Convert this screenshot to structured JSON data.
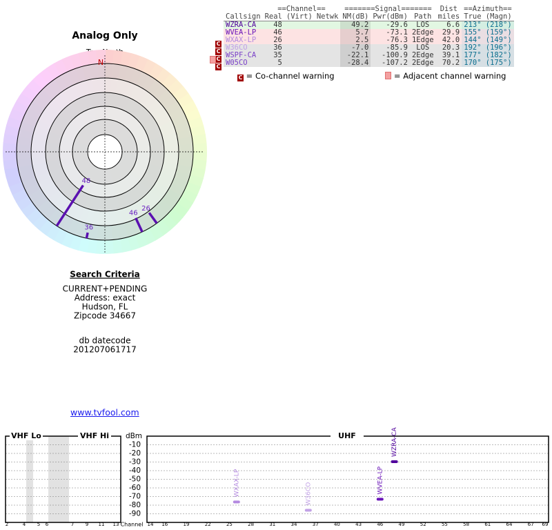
{
  "radar": {
    "title": "Analog Only",
    "north_caption": "TrueNorth",
    "north_letter": "N"
  },
  "table": {
    "group_headers": {
      "channel": "==Channel==",
      "signal": "=======Signal=======",
      "dist": "Dist",
      "azimuth": "==Azimuth=="
    },
    "columns": {
      "callsign": "Callsign",
      "real": "Real",
      "virt": "(Virt)",
      "netwk": "Netwk",
      "nm": "NM(dB)",
      "pwr": "Pwr(dBm)",
      "path": "Path",
      "dist": "miles",
      "az_true": "True",
      "az_magn": "(Magn)"
    },
    "rows": [
      {
        "callsign": "WZRA-CA",
        "real": 48,
        "nm": 49.2,
        "pwr": -29.6,
        "path": "LOS",
        "dist": 6.6,
        "az_true": {
          "value": 213,
          "label": "213°"
        },
        "az_magn": "(218°)",
        "bg": "#e2f7e2",
        "color": "#50009c"
      },
      {
        "callsign": "WVEA-LP",
        "real": 46,
        "nm": 5.7,
        "pwr": -73.1,
        "path": "2Edge",
        "dist": 29.9,
        "az_true": {
          "value": 155,
          "label": "155°"
        },
        "az_magn": "(159°)",
        "bg": "#fde3e3",
        "color": "#6a14b8"
      },
      {
        "callsign": "WXAX-LP",
        "real": 26,
        "nm": 2.5,
        "pwr": -76.3,
        "path": "1Edge",
        "dist": {
          "value": 42,
          "label": "42.0"
        },
        "az_true": {
          "value": 144,
          "label": "144°"
        },
        "az_magn": "(149°)",
        "bg": "#fde3e3",
        "color": "#b48ae0",
        "co_flag": "C"
      },
      {
        "callsign": "W36CO",
        "real": 36,
        "nm": {
          "value": -7,
          "label": "-7.0"
        },
        "pwr": -85.9,
        "path": "LOS",
        "dist": 20.3,
        "az_true": {
          "value": 192,
          "label": "192°"
        },
        "az_magn": "(196°)",
        "bg": "#e4e4e4",
        "color": "#c2a2e6",
        "co_flag": "C"
      },
      {
        "callsign": "WSPF-CA",
        "real": 35,
        "nm": -22.1,
        "pwr": -100.9,
        "path": "2Edge",
        "dist": 39.1,
        "az_true": {
          "value": 177,
          "label": "177°"
        },
        "az_magn": "(182°)",
        "bg": "#e4e4e4",
        "co_flag": "C",
        "adj_flag": true
      },
      {
        "callsign": "W05CO",
        "real": 5,
        "nm": -28.4,
        "pwr": -107.2,
        "path": "2Edge",
        "dist": 70.2,
        "az_true": {
          "value": 170,
          "label": "170°"
        },
        "az_magn": "(175°)",
        "bg": "#e4e4e4",
        "co_flag": "C"
      }
    ]
  },
  "legend": {
    "co_icon": "C",
    "co_text": "= Co-channel warning",
    "adj_text": "= Adjacent channel warning"
  },
  "search": {
    "title": "Search Criteria",
    "lines": [
      "CURRENT+PENDING",
      "Address: exact",
      "Hudson, FL",
      "Zipcode 34667"
    ],
    "datecode_title": "db datecode",
    "datecode": "201207061717"
  },
  "link": "www.tvfool.com",
  "spectrum": {
    "bands": {
      "vhf_lo": "VHF Lo",
      "vhf_hi": "VHF Hi",
      "uhf": "UHF"
    },
    "ylabel": "dBm",
    "xlabel": "Channel",
    "ylim": [
      0,
      -100
    ],
    "yticks": [
      -10,
      -20,
      -30,
      -40,
      -50,
      -60,
      -70,
      -80,
      -90
    ],
    "vhf_ticks": [
      2,
      4,
      5,
      6,
      7,
      9,
      11,
      13
    ],
    "uhf_ticks": [
      14,
      16,
      19,
      22,
      25,
      28,
      31,
      34,
      37,
      40,
      43,
      46,
      49,
      52,
      55,
      58,
      61,
      64,
      67,
      69
    ]
  }
}
